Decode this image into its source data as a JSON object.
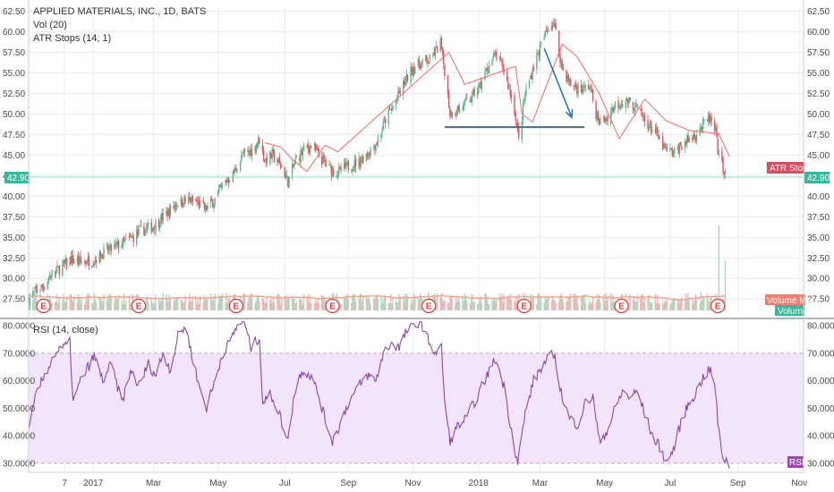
{
  "chart_data": [
    {
      "type": "candlestick",
      "title": "APPLIED MATERIALS, INC., 1D, BATS",
      "legend": [
        "Vol (20)",
        "ATR Stops (14, 1)"
      ],
      "ylim": [
        26,
        63
      ],
      "yticks": [
        "27.50",
        "30.00",
        "32.50",
        "35.00",
        "37.50",
        "40.00",
        "42.50",
        "45.00",
        "47.50",
        "50.00",
        "52.50",
        "55.00",
        "57.50",
        "60.00",
        "62.50"
      ],
      "last_price": "42.90",
      "tags": {
        "atr": "ATR Stops",
        "vol_ma": "Volume MA",
        "volume": "Volume"
      },
      "earnings_marker": "E",
      "earnings_dates": [
        "2016-11-17",
        "2017-02-15",
        "2017-05-18",
        "2017-08-17",
        "2017-11-16",
        "2018-02-14",
        "2018-05-17",
        "2018-08-16"
      ],
      "xrange": [
        "2016-11-03",
        "2018-11-05"
      ],
      "xticks": [
        {
          "label": "7",
          "date": "2016-12-07"
        },
        {
          "label": "2017",
          "date": "2017-01-03"
        },
        {
          "label": "Mar",
          "date": "2017-03-01"
        },
        {
          "label": "May",
          "date": "2017-05-01"
        },
        {
          "label": "Jul",
          "date": "2017-07-03"
        },
        {
          "label": "Sep",
          "date": "2017-09-01"
        },
        {
          "label": "Nov",
          "date": "2017-11-01"
        },
        {
          "label": "2018",
          "date": "2018-01-02"
        },
        {
          "label": "Mar",
          "date": "2018-03-01"
        },
        {
          "label": "May",
          "date": "2018-05-01"
        },
        {
          "label": "Jul",
          "date": "2018-07-02"
        },
        {
          "label": "Sep",
          "date": "2018-09-04"
        },
        {
          "label": "Nov",
          "date": "2018-11-01"
        }
      ],
      "price_path": [
        [
          "2016-11-03",
          27.5
        ],
        [
          "2016-11-10",
          28.5
        ],
        [
          "2016-11-18",
          29.2
        ],
        [
          "2016-11-25",
          30.6
        ],
        [
          "2016-12-05",
          31.4
        ],
        [
          "2016-12-12",
          32.3
        ],
        [
          "2016-12-20",
          32.0
        ],
        [
          "2017-01-03",
          32.2
        ],
        [
          "2017-01-12",
          33.1
        ],
        [
          "2017-01-20",
          33.6
        ],
        [
          "2017-01-31",
          34.3
        ],
        [
          "2017-02-10",
          35.0
        ],
        [
          "2017-02-17",
          35.8
        ],
        [
          "2017-02-28",
          36.3
        ],
        [
          "2017-03-08",
          37.2
        ],
        [
          "2017-03-15",
          38.1
        ],
        [
          "2017-03-24",
          39.3
        ],
        [
          "2017-03-31",
          39.5
        ],
        [
          "2017-04-10",
          39.3
        ],
        [
          "2017-04-19",
          38.5
        ],
        [
          "2017-04-28",
          39.6
        ],
        [
          "2017-05-05",
          41.4
        ],
        [
          "2017-05-15",
          42.6
        ],
        [
          "2017-05-24",
          44.9
        ],
        [
          "2017-06-02",
          45.6
        ],
        [
          "2017-06-09",
          46.9
        ],
        [
          "2017-06-14",
          44.4
        ],
        [
          "2017-06-21",
          45.0
        ],
        [
          "2017-06-29",
          43.8
        ],
        [
          "2017-07-06",
          41.8
        ],
        [
          "2017-07-13",
          44.3
        ],
        [
          "2017-07-21",
          45.6
        ],
        [
          "2017-07-28",
          46.2
        ],
        [
          "2017-08-04",
          44.9
        ],
        [
          "2017-08-14",
          43.4
        ],
        [
          "2017-08-22",
          42.9
        ],
        [
          "2017-08-31",
          43.6
        ],
        [
          "2017-09-11",
          44.2
        ],
        [
          "2017-09-20",
          45.4
        ],
        [
          "2017-09-28",
          46.6
        ],
        [
          "2017-10-06",
          49.3
        ],
        [
          "2017-10-16",
          51.6
        ],
        [
          "2017-10-24",
          53.8
        ],
        [
          "2017-11-01",
          55.6
        ],
        [
          "2017-11-08",
          56.2
        ],
        [
          "2017-11-17",
          56.6
        ],
        [
          "2017-11-27",
          58.6
        ],
        [
          "2017-12-01",
          55.3
        ],
        [
          "2017-12-06",
          50.2
        ],
        [
          "2017-12-14",
          50.6
        ],
        [
          "2017-12-22",
          51.4
        ],
        [
          "2018-01-03",
          53.3
        ],
        [
          "2018-01-10",
          55.5
        ],
        [
          "2018-01-18",
          57.2
        ],
        [
          "2018-01-26",
          55.4
        ],
        [
          "2018-02-05",
          50.6
        ],
        [
          "2018-02-09",
          46.8
        ],
        [
          "2018-02-15",
          52.4
        ],
        [
          "2018-02-23",
          55.8
        ],
        [
          "2018-03-01",
          58.0
        ],
        [
          "2018-03-09",
          60.6
        ],
        [
          "2018-03-14",
          61.2
        ],
        [
          "2018-03-22",
          55.6
        ],
        [
          "2018-03-30",
          53.6
        ],
        [
          "2018-04-09",
          52.9
        ],
        [
          "2018-04-17",
          53.5
        ],
        [
          "2018-04-25",
          49.0
        ],
        [
          "2018-05-03",
          49.5
        ],
        [
          "2018-05-11",
          51.2
        ],
        [
          "2018-05-21",
          51.6
        ],
        [
          "2018-05-31",
          50.8
        ],
        [
          "2018-06-08",
          49.2
        ],
        [
          "2018-06-18",
          47.8
        ],
        [
          "2018-06-26",
          45.8
        ],
        [
          "2018-07-05",
          45.2
        ],
        [
          "2018-07-13",
          46.3
        ],
        [
          "2018-07-23",
          47.2
        ],
        [
          "2018-07-31",
          48.4
        ],
        [
          "2018-08-08",
          49.4
        ],
        [
          "2018-08-14",
          47.6
        ],
        [
          "2018-08-17",
          44.6
        ],
        [
          "2018-08-23",
          42.9
        ]
      ],
      "atr_path": [
        [
          "2017-06-14",
          46.5
        ],
        [
          "2017-06-29",
          46.0
        ],
        [
          "2017-07-10",
          44.5
        ],
        [
          "2017-07-24",
          43.0
        ],
        [
          "2017-08-10",
          46.2
        ],
        [
          "2017-08-22",
          45.4
        ],
        [
          "2017-12-05",
          57.5
        ],
        [
          "2017-12-20",
          53.6
        ],
        [
          "2018-02-06",
          55.8
        ],
        [
          "2018-02-12",
          50.0
        ],
        [
          "2018-02-22",
          49.0
        ],
        [
          "2018-03-22",
          58.5
        ],
        [
          "2018-04-05",
          57.0
        ],
        [
          "2018-04-26",
          52.5
        ],
        [
          "2018-05-15",
          47.0
        ],
        [
          "2018-06-08",
          51.8
        ],
        [
          "2018-06-28",
          49.2
        ],
        [
          "2018-07-20",
          48.0
        ],
        [
          "2018-08-17",
          47.6
        ],
        [
          "2018-08-27",
          44.8
        ]
      ],
      "drawings": {
        "support_line": {
          "from": [
            "2017-12-01",
            48.4
          ],
          "to": [
            "2018-04-12",
            48.4
          ]
        },
        "arrow": {
          "from": [
            "2018-03-05",
            58.0
          ],
          "to": [
            "2018-03-31",
            49.6
          ]
        }
      },
      "volume": {
        "spikes": [
          [
            "2017-08-17",
            1.4
          ],
          [
            "2017-11-16",
            1.5
          ],
          [
            "2018-02-14",
            1.4
          ],
          [
            "2018-05-17",
            1.3
          ],
          [
            "2018-07-31",
            1.5
          ],
          [
            "2018-08-17",
            6.8
          ],
          [
            "2018-08-23",
            4.0
          ]
        ]
      }
    },
    {
      "type": "line",
      "title": "RSI (14, close)",
      "ylim": [
        27,
        82
      ],
      "yticks": [
        "30.0000",
        "40.0000",
        "50.0000",
        "60.0000",
        "70.0000",
        "80.0000"
      ],
      "bands": [
        30,
        70
      ],
      "tag": "RSI",
      "series": [
        {
          "values": [
            [
              "2016-11-03",
              41
            ],
            [
              "2016-11-10",
              55
            ],
            [
              "2016-11-18",
              62
            ],
            [
              "2016-11-28",
              70
            ],
            [
              "2016-12-06",
              72
            ],
            [
              "2016-12-12",
              74
            ],
            [
              "2016-12-15",
              52
            ],
            [
              "2016-12-22",
              60
            ],
            [
              "2017-01-04",
              69
            ],
            [
              "2017-01-12",
              60
            ],
            [
              "2017-01-20",
              66
            ],
            [
              "2017-01-30",
              52
            ],
            [
              "2017-02-08",
              64
            ],
            [
              "2017-02-15",
              58
            ],
            [
              "2017-02-24",
              66
            ],
            [
              "2017-03-03",
              62
            ],
            [
              "2017-03-10",
              70
            ],
            [
              "2017-03-17",
              64
            ],
            [
              "2017-03-24",
              76
            ],
            [
              "2017-03-31",
              80
            ],
            [
              "2017-04-07",
              68
            ],
            [
              "2017-04-13",
              58
            ],
            [
              "2017-04-20",
              50
            ],
            [
              "2017-04-28",
              60
            ],
            [
              "2017-05-05",
              70
            ],
            [
              "2017-05-12",
              74
            ],
            [
              "2017-05-19",
              80
            ],
            [
              "2017-05-25",
              82
            ],
            [
              "2017-06-01",
              72
            ],
            [
              "2017-06-09",
              76
            ],
            [
              "2017-06-12",
              52
            ],
            [
              "2017-06-20",
              55
            ],
            [
              "2017-06-28",
              48
            ],
            [
              "2017-07-05",
              38
            ],
            [
              "2017-07-12",
              55
            ],
            [
              "2017-07-19",
              64
            ],
            [
              "2017-07-27",
              62
            ],
            [
              "2017-08-03",
              56
            ],
            [
              "2017-08-10",
              46
            ],
            [
              "2017-08-17",
              38
            ],
            [
              "2017-08-24",
              44
            ],
            [
              "2017-09-01",
              52
            ],
            [
              "2017-09-11",
              58
            ],
            [
              "2017-09-19",
              62
            ],
            [
              "2017-09-27",
              60
            ],
            [
              "2017-10-04",
              70
            ],
            [
              "2017-10-12",
              74
            ],
            [
              "2017-10-19",
              72
            ],
            [
              "2017-10-26",
              78
            ],
            [
              "2017-11-03",
              80
            ],
            [
              "2017-11-08",
              82
            ],
            [
              "2017-11-14",
              76
            ],
            [
              "2017-11-22",
              70
            ],
            [
              "2017-11-28",
              72
            ],
            [
              "2017-12-01",
              52
            ],
            [
              "2017-12-06",
              38
            ],
            [
              "2017-12-14",
              44
            ],
            [
              "2017-12-21",
              46
            ],
            [
              "2018-01-03",
              56
            ],
            [
              "2018-01-10",
              62
            ],
            [
              "2018-01-18",
              68
            ],
            [
              "2018-01-26",
              58
            ],
            [
              "2018-02-02",
              42
            ],
            [
              "2018-02-08",
              30
            ],
            [
              "2018-02-15",
              48
            ],
            [
              "2018-02-23",
              60
            ],
            [
              "2018-03-01",
              64
            ],
            [
              "2018-03-09",
              68
            ],
            [
              "2018-03-14",
              70
            ],
            [
              "2018-03-22",
              54
            ],
            [
              "2018-03-29",
              46
            ],
            [
              "2018-04-06",
              44
            ],
            [
              "2018-04-13",
              52
            ],
            [
              "2018-04-20",
              54
            ],
            [
              "2018-04-26",
              38
            ],
            [
              "2018-05-04",
              42
            ],
            [
              "2018-05-11",
              50
            ],
            [
              "2018-05-18",
              56
            ],
            [
              "2018-05-25",
              54
            ],
            [
              "2018-06-01",
              56
            ],
            [
              "2018-06-08",
              48
            ],
            [
              "2018-06-15",
              40
            ],
            [
              "2018-06-22",
              36
            ],
            [
              "2018-06-29",
              30
            ],
            [
              "2018-07-06",
              36
            ],
            [
              "2018-07-13",
              46
            ],
            [
              "2018-07-20",
              52
            ],
            [
              "2018-07-27",
              56
            ],
            [
              "2018-08-03",
              62
            ],
            [
              "2018-08-09",
              64
            ],
            [
              "2018-08-14",
              56
            ],
            [
              "2018-08-16",
              44
            ],
            [
              "2018-08-20",
              33
            ],
            [
              "2018-08-27",
              29
            ]
          ]
        }
      ]
    }
  ]
}
